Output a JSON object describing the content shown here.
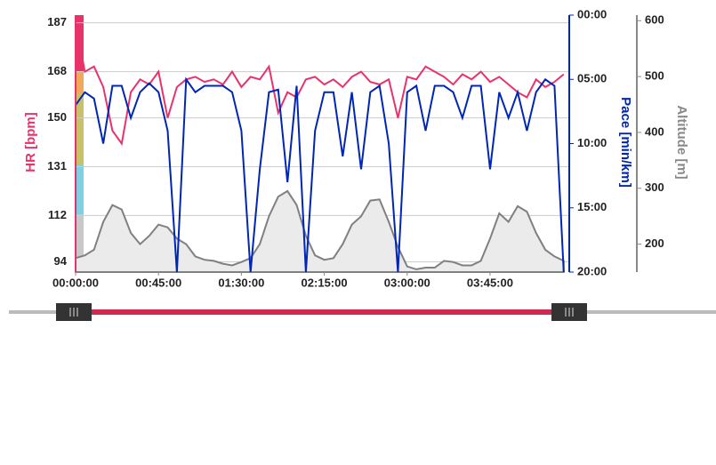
{
  "chart_data": {
    "type": "line",
    "x": [
      0,
      5,
      10,
      15,
      20,
      25,
      30,
      35,
      40,
      45,
      50,
      55,
      60,
      65,
      70,
      75,
      80,
      85,
      90,
      95,
      100,
      105,
      110,
      115,
      120,
      125,
      130,
      135,
      140,
      145,
      150,
      155,
      160,
      165,
      170,
      175,
      180,
      185,
      190,
      195,
      200,
      205,
      210,
      215,
      220,
      225,
      230,
      235,
      240,
      245,
      250,
      255,
      260,
      265
    ],
    "xlim": [
      0,
      268
    ],
    "xticks": [
      {
        "value": 0,
        "label": "00:00:00"
      },
      {
        "value": 45,
        "label": "00:45:00"
      },
      {
        "value": 90,
        "label": "01:30:00"
      },
      {
        "value": 135,
        "label": "02:15:00"
      },
      {
        "value": 180,
        "label": "03:00:00"
      },
      {
        "value": 225,
        "label": "03:45:00"
      }
    ],
    "ylabel": "HR [bpm]",
    "ylim": [
      90,
      190
    ],
    "yticks": [
      94,
      112,
      131,
      150,
      168,
      187
    ],
    "y2label": "Pace [min/km]",
    "y2lim": [
      20,
      0
    ],
    "y2ticks": [
      {
        "value": 0,
        "label": "00:00"
      },
      {
        "value": 5,
        "label": "05:00"
      },
      {
        "value": 10,
        "label": "10:00"
      },
      {
        "value": 15,
        "label": "15:00"
      },
      {
        "value": 20,
        "label": "20:00"
      }
    ],
    "y3label": "Altitude [m]",
    "y3lim": [
      150,
      610
    ],
    "y3ticks": [
      200,
      300,
      400,
      500,
      600
    ],
    "grid": true,
    "series": [
      {
        "name": "Altitude",
        "axis": "y3",
        "fill": true,
        "color": "#808080",
        "values": [
          175,
          180,
          190,
          240,
          270,
          262,
          220,
          200,
          215,
          235,
          230,
          210,
          200,
          178,
          172,
          170,
          165,
          162,
          168,
          175,
          200,
          250,
          285,
          295,
          270,
          215,
          180,
          172,
          175,
          200,
          235,
          250,
          278,
          280,
          240,
          195,
          160,
          155,
          158,
          158,
          170,
          168,
          162,
          162,
          170,
          210,
          255,
          240,
          268,
          258,
          220,
          190,
          178,
          170
        ]
      },
      {
        "name": "HR",
        "axis": "y",
        "color": "#e8336a",
        "values": [
          187,
          168,
          170,
          162,
          145,
          140,
          160,
          165,
          163,
          168,
          150,
          162,
          165,
          166,
          164,
          165,
          163,
          168,
          162,
          166,
          165,
          170,
          152,
          160,
          158,
          165,
          166,
          163,
          165,
          162,
          166,
          168,
          164,
          163,
          165,
          150,
          166,
          165,
          170,
          168,
          166,
          163,
          167,
          165,
          168,
          164,
          166,
          163,
          160,
          158,
          165,
          162,
          164,
          167
        ]
      },
      {
        "name": "Pace",
        "axis": "y2",
        "color": "#0026b3",
        "values": [
          7,
          6,
          6.5,
          10,
          5.5,
          5.5,
          8,
          6,
          5.3,
          6,
          9,
          20,
          5,
          6,
          5.5,
          5.5,
          5.5,
          6,
          9,
          20,
          12,
          6,
          5.8,
          13,
          5.5,
          20,
          9,
          6,
          6,
          11,
          6,
          12,
          6,
          5.5,
          10,
          20,
          6,
          5.5,
          9,
          5.5,
          5.5,
          6,
          8,
          5.5,
          5.5,
          12,
          6,
          8,
          6,
          9,
          6,
          5,
          5.5,
          20
        ]
      }
    ]
  }
}
